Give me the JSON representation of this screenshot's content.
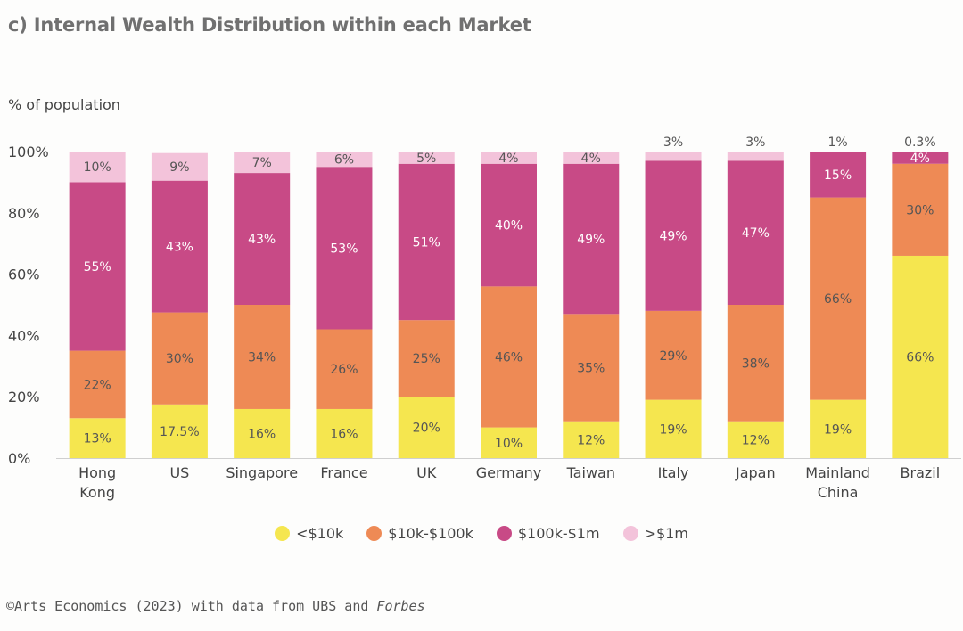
{
  "title": "c) Internal Wealth Distribution within each Market",
  "source_prefix": "©Arts Economics (2023) with data from UBS and",
  "source_italic": "Forbes",
  "chart_data": {
    "type": "bar",
    "stacked": true,
    "ylabel": "% of population",
    "ylim": [
      0,
      100
    ],
    "y_ticks": [
      "0%",
      "20%",
      "40%",
      "60%",
      "80%",
      "100%"
    ],
    "grid": false,
    "legend_position": "bottom-center",
    "categories": [
      [
        "Hong",
        "Kong"
      ],
      [
        "US"
      ],
      [
        "Singapore"
      ],
      [
        "France"
      ],
      [
        "UK"
      ],
      [
        "Germany"
      ],
      [
        "Taiwan"
      ],
      [
        "Italy"
      ],
      [
        "Japan"
      ],
      [
        "Mainland",
        "China"
      ],
      [
        "Brazil"
      ]
    ],
    "series": [
      {
        "name": "<$10k",
        "color": "#f5e64f",
        "values": [
          13,
          17.5,
          16,
          16,
          20,
          10,
          12,
          19,
          12,
          19,
          66
        ],
        "labels": [
          "13%",
          "17.5%",
          "16%",
          "16%",
          "20%",
          "10%",
          "12%",
          "19%",
          "12%",
          "19%",
          "66%"
        ]
      },
      {
        "name": "$10k-$100k",
        "color": "#ee8a55",
        "values": [
          22,
          30,
          34,
          26,
          25,
          46,
          35,
          29,
          38,
          66,
          30
        ],
        "labels": [
          "22%",
          "30%",
          "34%",
          "26%",
          "25%",
          "46%",
          "35%",
          "29%",
          "38%",
          "66%",
          "30%"
        ]
      },
      {
        "name": "$100k-$1m",
        "color": "#c84a86",
        "values": [
          55,
          43,
          43,
          53,
          51,
          40,
          49,
          49,
          47,
          15,
          4
        ],
        "labels": [
          "55%",
          "43%",
          "43%",
          "53%",
          "51%",
          "40%",
          "49%",
          "49%",
          "47%",
          "15%",
          "4%"
        ]
      },
      {
        "name": ">$1m",
        "color": "#f3c3da",
        "values": [
          10,
          9,
          7,
          6,
          5,
          4,
          4,
          3,
          3,
          1,
          0.3
        ],
        "labels": [
          "10%",
          "9%",
          "7%",
          "6%",
          "5%",
          "4%",
          "4%",
          "3%",
          "3%",
          "1%",
          "0.3%"
        ]
      }
    ]
  }
}
